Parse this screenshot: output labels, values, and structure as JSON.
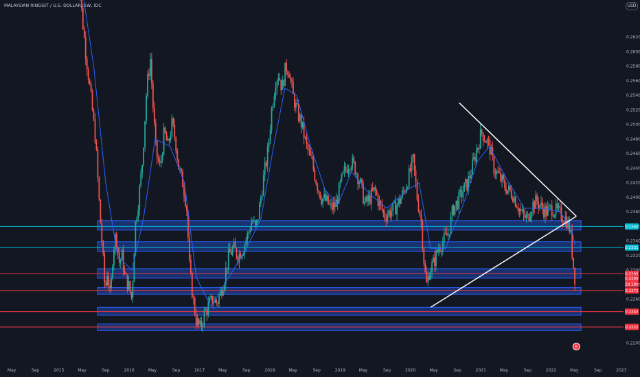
{
  "title": "MALAYSIAN RINGGIT / U.S. DOLLAR, 1W, IDC",
  "currency_badge": "USD",
  "colors": {
    "background": "#131722",
    "up": "#26a69a",
    "down": "#ef5350",
    "ma": "#2962ff",
    "cyan_line": "#00bcd4",
    "red_line": "#f23645",
    "zone_fill": "#2962ff",
    "trendline": "#ffffff",
    "label_red": "#f23645",
    "label_cyan": "#00bcd4"
  },
  "chart_data": {
    "type": "candlestick",
    "symbol": "MYRUSD",
    "interval": "1W",
    "ylim": [
      0.2189,
      0.2656
    ],
    "y_ticks": [
      0.22,
      0.226,
      0.228,
      0.23,
      0.232,
      0.234,
      0.236,
      0.238,
      0.24,
      0.242,
      0.244,
      0.246,
      0.248,
      0.25,
      0.252,
      0.254,
      0.256,
      0.258,
      0.26,
      0.262
    ],
    "x_ticks": [
      "May",
      "Sep",
      "2015",
      "May",
      "Sep",
      "2016",
      "May",
      "Sep",
      "2017",
      "May",
      "Sep",
      "2018",
      "May",
      "Sep",
      "2019",
      "May",
      "Sep",
      "2020",
      "May",
      "Sep",
      "2021",
      "May",
      "Sep",
      "2022",
      "May",
      "Sep",
      "2023"
    ],
    "x_tick_dates": [
      "2014-05",
      "2014-09",
      "2015-01",
      "2015-05",
      "2015-09",
      "2016-01",
      "2016-05",
      "2016-09",
      "2017-01",
      "2017-05",
      "2017-09",
      "2018-01",
      "2018-05",
      "2018-09",
      "2019-01",
      "2019-05",
      "2019-09",
      "2020-01",
      "2020-05",
      "2020-09",
      "2021-01",
      "2021-05",
      "2021-09",
      "2022-01",
      "2022-05",
      "2022-09",
      "2023-01"
    ],
    "xlim": [
      "2014-03-01",
      "2023-01-12"
    ],
    "price_path": [
      {
        "date": "2015-04-01",
        "value": 0.276
      },
      {
        "date": "2015-04-15",
        "value": 0.27
      },
      {
        "date": "2015-05-01",
        "value": 0.265
      },
      {
        "date": "2015-05-20",
        "value": 0.26
      },
      {
        "date": "2015-06-15",
        "value": 0.254
      },
      {
        "date": "2015-07-10",
        "value": 0.248
      },
      {
        "date": "2015-08-01",
        "value": 0.238
      },
      {
        "date": "2015-08-15",
        "value": 0.233
      },
      {
        "date": "2015-08-29",
        "value": 0.227
      },
      {
        "date": "2015-09-10",
        "value": 0.23
      },
      {
        "date": "2015-09-25",
        "value": 0.226
      },
      {
        "date": "2015-10-10",
        "value": 0.233
      },
      {
        "date": "2015-10-25",
        "value": 0.235
      },
      {
        "date": "2015-11-10",
        "value": 0.231
      },
      {
        "date": "2015-11-25",
        "value": 0.232
      },
      {
        "date": "2015-12-10",
        "value": 0.229
      },
      {
        "date": "2015-12-28",
        "value": 0.228
      },
      {
        "date": "2016-01-15",
        "value": 0.226
      },
      {
        "date": "2016-02-01",
        "value": 0.236
      },
      {
        "date": "2016-02-20",
        "value": 0.24
      },
      {
        "date": "2016-03-10",
        "value": 0.245
      },
      {
        "date": "2016-04-01",
        "value": 0.255
      },
      {
        "date": "2016-04-20",
        "value": 0.259
      },
      {
        "date": "2016-05-05",
        "value": 0.252
      },
      {
        "date": "2016-05-20",
        "value": 0.246
      },
      {
        "date": "2016-06-10",
        "value": 0.244
      },
      {
        "date": "2016-07-01",
        "value": 0.249
      },
      {
        "date": "2016-07-20",
        "value": 0.247
      },
      {
        "date": "2016-08-10",
        "value": 0.25
      },
      {
        "date": "2016-08-28",
        "value": 0.248
      },
      {
        "date": "2016-09-15",
        "value": 0.244
      },
      {
        "date": "2016-10-05",
        "value": 0.242
      },
      {
        "date": "2016-10-25",
        "value": 0.239
      },
      {
        "date": "2016-11-10",
        "value": 0.23
      },
      {
        "date": "2016-11-28",
        "value": 0.226
      },
      {
        "date": "2016-12-15",
        "value": 0.223
      },
      {
        "date": "2017-01-05",
        "value": 0.222
      },
      {
        "date": "2017-01-25",
        "value": 0.224
      },
      {
        "date": "2017-02-15",
        "value": 0.225
      },
      {
        "date": "2017-03-10",
        "value": 0.226
      },
      {
        "date": "2017-04-01",
        "value": 0.2255
      },
      {
        "date": "2017-04-20",
        "value": 0.227
      },
      {
        "date": "2017-05-10",
        "value": 0.229
      },
      {
        "date": "2017-06-01",
        "value": 0.232
      },
      {
        "date": "2017-06-25",
        "value": 0.233
      },
      {
        "date": "2017-07-20",
        "value": 0.232
      },
      {
        "date": "2017-08-15",
        "value": 0.233
      },
      {
        "date": "2017-09-10",
        "value": 0.235
      },
      {
        "date": "2017-10-01",
        "value": 0.237
      },
      {
        "date": "2017-10-20",
        "value": 0.2355
      },
      {
        "date": "2017-11-10",
        "value": 0.239
      },
      {
        "date": "2017-12-01",
        "value": 0.243
      },
      {
        "date": "2017-12-20",
        "value": 0.246
      },
      {
        "date": "2018-01-10",
        "value": 0.252
      },
      {
        "date": "2018-01-30",
        "value": 0.256
      },
      {
        "date": "2018-02-15",
        "value": 0.257
      },
      {
        "date": "2018-03-05",
        "value": 0.255
      },
      {
        "date": "2018-03-25",
        "value": 0.258
      },
      {
        "date": "2018-04-10",
        "value": 0.2575
      },
      {
        "date": "2018-04-30",
        "value": 0.254
      },
      {
        "date": "2018-05-20",
        "value": 0.252
      },
      {
        "date": "2018-06-15",
        "value": 0.25
      },
      {
        "date": "2018-07-10",
        "value": 0.247
      },
      {
        "date": "2018-08-05",
        "value": 0.245
      },
      {
        "date": "2018-09-01",
        "value": 0.242
      },
      {
        "date": "2018-09-25",
        "value": 0.24
      },
      {
        "date": "2018-10-20",
        "value": 0.2395
      },
      {
        "date": "2018-11-15",
        "value": 0.2385
      },
      {
        "date": "2018-12-10",
        "value": 0.239
      },
      {
        "date": "2019-01-05",
        "value": 0.242
      },
      {
        "date": "2019-01-30",
        "value": 0.244
      },
      {
        "date": "2019-02-25",
        "value": 0.245
      },
      {
        "date": "2019-03-20",
        "value": 0.244
      },
      {
        "date": "2019-04-15",
        "value": 0.242
      },
      {
        "date": "2019-05-10",
        "value": 0.239
      },
      {
        "date": "2019-06-05",
        "value": 0.24
      },
      {
        "date": "2019-06-30",
        "value": 0.241
      },
      {
        "date": "2019-07-25",
        "value": 0.239
      },
      {
        "date": "2019-08-20",
        "value": 0.2375
      },
      {
        "date": "2019-09-15",
        "value": 0.238
      },
      {
        "date": "2019-10-10",
        "value": 0.2385
      },
      {
        "date": "2019-11-05",
        "value": 0.2395
      },
      {
        "date": "2019-12-01",
        "value": 0.241
      },
      {
        "date": "2019-12-25",
        "value": 0.243
      },
      {
        "date": "2020-01-15",
        "value": 0.245
      },
      {
        "date": "2020-02-05",
        "value": 0.24
      },
      {
        "date": "2020-02-25",
        "value": 0.237
      },
      {
        "date": "2020-03-15",
        "value": 0.23
      },
      {
        "date": "2020-03-25",
        "value": 0.228
      },
      {
        "date": "2020-04-10",
        "value": 0.23
      },
      {
        "date": "2020-05-01",
        "value": 0.231
      },
      {
        "date": "2020-05-25",
        "value": 0.233
      },
      {
        "date": "2020-06-20",
        "value": 0.234
      },
      {
        "date": "2020-07-15",
        "value": 0.235
      },
      {
        "date": "2020-08-10",
        "value": 0.2385
      },
      {
        "date": "2020-09-05",
        "value": 0.2395
      },
      {
        "date": "2020-10-01",
        "value": 0.241
      },
      {
        "date": "2020-10-25",
        "value": 0.242
      },
      {
        "date": "2020-11-20",
        "value": 0.2445
      },
      {
        "date": "2020-12-15",
        "value": 0.247
      },
      {
        "date": "2021-01-05",
        "value": 0.249
      },
      {
        "date": "2021-01-25",
        "value": 0.248
      },
      {
        "date": "2021-02-15",
        "value": 0.247
      },
      {
        "date": "2021-03-10",
        "value": 0.244
      },
      {
        "date": "2021-04-01",
        "value": 0.243
      },
      {
        "date": "2021-04-25",
        "value": 0.242
      },
      {
        "date": "2021-05-20",
        "value": 0.241
      },
      {
        "date": "2021-06-15",
        "value": 0.2405
      },
      {
        "date": "2021-07-10",
        "value": 0.239
      },
      {
        "date": "2021-08-05",
        "value": 0.2375
      },
      {
        "date": "2021-08-30",
        "value": 0.237
      },
      {
        "date": "2021-09-25",
        "value": 0.239
      },
      {
        "date": "2021-10-20",
        "value": 0.2395
      },
      {
        "date": "2021-11-15",
        "value": 0.2385
      },
      {
        "date": "2021-12-10",
        "value": 0.238
      },
      {
        "date": "2022-01-05",
        "value": 0.2385
      },
      {
        "date": "2022-02-01",
        "value": 0.238
      },
      {
        "date": "2022-02-25",
        "value": 0.2375
      },
      {
        "date": "2022-03-20",
        "value": 0.237
      },
      {
        "date": "2022-04-10",
        "value": 0.2355
      },
      {
        "date": "2022-04-25",
        "value": 0.231
      },
      {
        "date": "2022-05-05",
        "value": 0.2289
      }
    ],
    "price_path_note": "",
    "moving_average": [
      {
        "date": "2015-04-01",
        "value": 0.274
      },
      {
        "date": "2015-07-01",
        "value": 0.258
      },
      {
        "date": "2015-09-01",
        "value": 0.242
      },
      {
        "date": "2015-11-01",
        "value": 0.232
      },
      {
        "date": "2016-01-15",
        "value": 0.23
      },
      {
        "date": "2016-03-15",
        "value": 0.237
      },
      {
        "date": "2016-05-15",
        "value": 0.248
      },
      {
        "date": "2016-08-01",
        "value": 0.247
      },
      {
        "date": "2016-10-15",
        "value": 0.242
      },
      {
        "date": "2016-12-15",
        "value": 0.229
      },
      {
        "date": "2017-03-01",
        "value": 0.225
      },
      {
        "date": "2017-06-01",
        "value": 0.229
      },
      {
        "date": "2017-09-01",
        "value": 0.233
      },
      {
        "date": "2017-11-15",
        "value": 0.237
      },
      {
        "date": "2018-01-20",
        "value": 0.247
      },
      {
        "date": "2018-03-20",
        "value": 0.255
      },
      {
        "date": "2018-05-20",
        "value": 0.254
      },
      {
        "date": "2018-08-01",
        "value": 0.247
      },
      {
        "date": "2018-10-15",
        "value": 0.241
      },
      {
        "date": "2018-12-20",
        "value": 0.239
      },
      {
        "date": "2019-03-01",
        "value": 0.2435
      },
      {
        "date": "2019-06-01",
        "value": 0.2405
      },
      {
        "date": "2019-09-01",
        "value": 0.2385
      },
      {
        "date": "2019-12-15",
        "value": 0.241
      },
      {
        "date": "2020-02-15",
        "value": 0.242
      },
      {
        "date": "2020-04-15",
        "value": 0.233
      },
      {
        "date": "2020-07-01",
        "value": 0.233
      },
      {
        "date": "2020-10-01",
        "value": 0.239
      },
      {
        "date": "2020-12-15",
        "value": 0.245
      },
      {
        "date": "2021-02-15",
        "value": 0.247
      },
      {
        "date": "2021-05-15",
        "value": 0.2425
      },
      {
        "date": "2021-08-15",
        "value": 0.2385
      },
      {
        "date": "2021-11-15",
        "value": 0.2385
      },
      {
        "date": "2022-02-15",
        "value": 0.238
      },
      {
        "date": "2022-04-15",
        "value": 0.236
      },
      {
        "date": "2022-05-05",
        "value": 0.2335
      }
    ],
    "horizontal_lines": [
      {
        "name": "cyan-line-upper",
        "value": 0.236,
        "color": "cyan"
      },
      {
        "name": "cyan-line-lower",
        "value": 0.2331,
        "color": "cyan"
      },
      {
        "name": "red-line-1",
        "value": 0.2295,
        "color": "red"
      },
      {
        "name": "red-line-2",
        "value": 0.2272,
        "color": "red"
      },
      {
        "name": "red-line-3",
        "value": 0.2243,
        "color": "red"
      },
      {
        "name": "red-line-4",
        "value": 0.2222,
        "color": "red"
      }
    ],
    "zones": [
      {
        "name": "zone-1",
        "from": "2015-07-20",
        "to": "2022-06-05",
        "y_low": 0.2355,
        "y_high": 0.2368
      },
      {
        "name": "zone-2",
        "from": "2015-07-20",
        "to": "2022-06-05",
        "y_low": 0.2326,
        "y_high": 0.2339
      },
      {
        "name": "zone-3",
        "from": "2015-07-20",
        "to": "2022-06-05",
        "y_low": 0.2289,
        "y_high": 0.2302
      },
      {
        "name": "zone-4",
        "from": "2015-07-20",
        "to": "2022-06-05",
        "y_low": 0.2267,
        "y_high": 0.2276
      },
      {
        "name": "zone-5",
        "from": "2015-07-20",
        "to": "2022-06-05",
        "y_low": 0.2238,
        "y_high": 0.2249
      },
      {
        "name": "zone-6",
        "from": "2015-07-20",
        "to": "2022-06-05",
        "y_low": 0.2217,
        "y_high": 0.2226
      }
    ],
    "trendlines": [
      {
        "name": "upper-trendline",
        "from": {
          "date": "2020-09-10",
          "value": 0.253
        },
        "to": {
          "date": "2022-05-12",
          "value": 0.2374
        }
      },
      {
        "name": "lower-trendline",
        "from": {
          "date": "2020-04-15",
          "value": 0.2249
        },
        "to": {
          "date": "2022-05-12",
          "value": 0.2374
        }
      }
    ],
    "price_labels": [
      {
        "name": "label-cyan-2360",
        "text": "0.2360",
        "value": 0.236,
        "color": "cyan"
      },
      {
        "name": "label-cyan-2331",
        "text": "0.2331",
        "value": 0.2331,
        "color": "cyan"
      },
      {
        "name": "label-red-2295",
        "text": "0.2295",
        "value": 0.2295,
        "color": "red"
      },
      {
        "name": "label-red-2289",
        "text": "0.2289",
        "value": 0.2289,
        "color": "red"
      },
      {
        "name": "label-red-countdown",
        "text": "2d 18h",
        "value": 0.2281,
        "color": "red"
      },
      {
        "name": "label-red-2272",
        "text": "0.2272",
        "value": 0.2272,
        "color": "red"
      },
      {
        "name": "label-red-2243",
        "text": "0.2243",
        "value": 0.2243,
        "color": "red"
      },
      {
        "name": "label-red-2222",
        "text": "0.2222",
        "value": 0.2222,
        "color": "red"
      }
    ],
    "event_marker": {
      "date": "2022-05-12",
      "value": 0.2195,
      "text": "E"
    },
    "grid": false,
    "legend": ""
  }
}
